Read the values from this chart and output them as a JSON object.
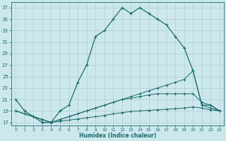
{
  "xlabel": "Humidex (Indice chaleur)",
  "xlim": [
    -0.5,
    23.5
  ],
  "ylim": [
    16.5,
    38
  ],
  "yticks": [
    17,
    19,
    21,
    23,
    25,
    27,
    29,
    31,
    33,
    35,
    37
  ],
  "xticks": [
    0,
    1,
    2,
    3,
    4,
    5,
    6,
    7,
    8,
    9,
    10,
    11,
    12,
    13,
    14,
    15,
    16,
    17,
    18,
    19,
    20,
    21,
    22,
    23
  ],
  "background_color": "#cde8ed",
  "grid_color": "#aecdd4",
  "line_color": "#1a6b6b",
  "line1_x": [
    0,
    1,
    2,
    3,
    4,
    5,
    6,
    7,
    8,
    9,
    10,
    11,
    12,
    13,
    14,
    15,
    16,
    17,
    18,
    19,
    20,
    21,
    22,
    23
  ],
  "line1_y": [
    21,
    19,
    18,
    17,
    17,
    19,
    20,
    24,
    27,
    32,
    33,
    35,
    37,
    36,
    37,
    36,
    35,
    34,
    32,
    30,
    26,
    20,
    20,
    19
  ],
  "line2_x": [
    0,
    1,
    2,
    3,
    4,
    5,
    6,
    7,
    8,
    9,
    10,
    11,
    12,
    13,
    14,
    15,
    16,
    17,
    18,
    19,
    20,
    21,
    22,
    23
  ],
  "line2_y": [
    19,
    18.5,
    18,
    17.5,
    17,
    17.5,
    18,
    18.5,
    19,
    19.5,
    20,
    20.5,
    21,
    21.5,
    22,
    22.5,
    23,
    23.5,
    24,
    24.5,
    26,
    20,
    19.5,
    19
  ],
  "line3_x": [
    0,
    1,
    2,
    3,
    4,
    5,
    6,
    7,
    8,
    9,
    10,
    11,
    12,
    13,
    14,
    15,
    16,
    17,
    18,
    19,
    20,
    21,
    22,
    23
  ],
  "line3_y": [
    19,
    18.5,
    18,
    17.5,
    17,
    17.5,
    18,
    18.5,
    19,
    19.5,
    20,
    20.5,
    21,
    21.2,
    21.5,
    21.8,
    22,
    22,
    22,
    22,
    22,
    20.5,
    20,
    19
  ],
  "line4_x": [
    0,
    1,
    2,
    3,
    4,
    5,
    6,
    7,
    8,
    9,
    10,
    11,
    12,
    13,
    14,
    15,
    16,
    17,
    18,
    19,
    20,
    21,
    22,
    23
  ],
  "line4_y": [
    19,
    18.5,
    18,
    17.5,
    17,
    17.2,
    17.4,
    17.6,
    17.8,
    18,
    18.2,
    18.5,
    18.7,
    18.9,
    19,
    19.1,
    19.2,
    19.3,
    19.4,
    19.5,
    19.7,
    19.5,
    19.2,
    19
  ]
}
